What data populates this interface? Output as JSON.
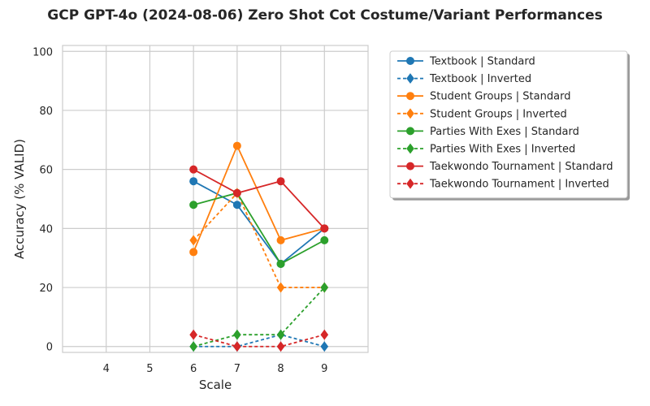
{
  "chart_data": {
    "type": "line",
    "title": "GCP GPT-4o (2024-08-06) Zero Shot Cot Costume/Variant Performances",
    "xlabel": "Scale",
    "ylabel": "Accuracy (% VALID)",
    "xlim": [
      3,
      10
    ],
    "ylim": [
      -2,
      102
    ],
    "xticks": [
      4,
      5,
      6,
      7,
      8,
      9
    ],
    "yticks": [
      0,
      20,
      40,
      60,
      80,
      100
    ],
    "grid": true,
    "legend_position": "outside-top-right",
    "x": [
      6,
      7,
      8,
      9
    ],
    "series": [
      {
        "name": "Textbook | Standard",
        "color": "#1f77b4",
        "dash": "solid",
        "marker": "circle",
        "values": [
          56,
          48,
          28,
          40
        ]
      },
      {
        "name": "Textbook | Inverted",
        "color": "#1f77b4",
        "dash": "dashed",
        "marker": "diamond",
        "values": [
          0,
          0,
          4,
          0
        ]
      },
      {
        "name": "Student Groups | Standard",
        "color": "#ff7f0e",
        "dash": "solid",
        "marker": "circle",
        "values": [
          32,
          68,
          36,
          40
        ]
      },
      {
        "name": "Student Groups | Inverted",
        "color": "#ff7f0e",
        "dash": "dashed",
        "marker": "diamond",
        "values": [
          36,
          52,
          20,
          20
        ]
      },
      {
        "name": "Parties With Exes | Standard",
        "color": "#2ca02c",
        "dash": "solid",
        "marker": "circle",
        "values": [
          48,
          52,
          28,
          36
        ]
      },
      {
        "name": "Parties With Exes | Inverted",
        "color": "#2ca02c",
        "dash": "dashed",
        "marker": "diamond",
        "values": [
          0,
          4,
          4,
          20
        ]
      },
      {
        "name": "Taekwondo Tournament | Standard",
        "color": "#d62728",
        "dash": "solid",
        "marker": "circle",
        "values": [
          60,
          52,
          56,
          40
        ]
      },
      {
        "name": "Taekwondo Tournament | Inverted",
        "color": "#d62728",
        "dash": "dashed",
        "marker": "diamond",
        "values": [
          4,
          0,
          0,
          4
        ]
      }
    ]
  }
}
